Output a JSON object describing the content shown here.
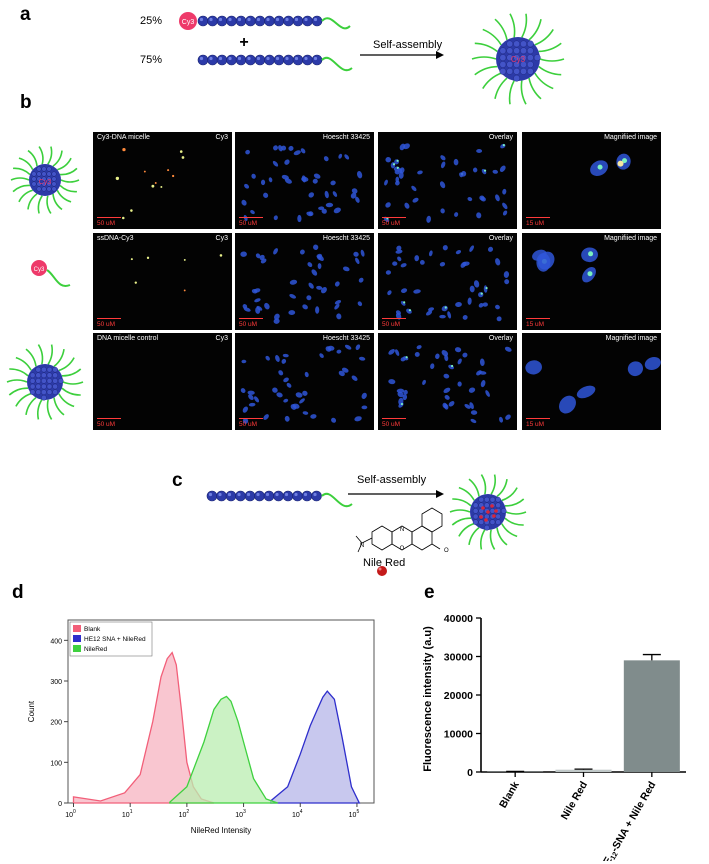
{
  "panels": {
    "a": {
      "letter": "a",
      "cy3_percent": "25%",
      "plain_percent": "75%",
      "plus": "+",
      "cy3_tag": "Cy3",
      "arrow_label": "Self-assembly",
      "micelle_core_tag": "Cy3"
    },
    "b": {
      "letter": "b",
      "rows": [
        {
          "side_tag": "Cy3",
          "scale_label": "50 uM",
          "magnified_scale_label": "15 uM",
          "tiles": [
            {
              "left": "Cy3-DNA micelle",
              "right": "Cy3"
            },
            {
              "left": "",
              "right": "Hoescht 33425"
            },
            {
              "left": "",
              "right": "Overlay"
            },
            {
              "left": "",
              "right": "Magnifiied image"
            }
          ]
        },
        {
          "side_tag": "Cy3",
          "scale_label": "50 uM",
          "magnified_scale_label": "15 uM",
          "tiles": [
            {
              "left": "ssDNA-Cy3",
              "right": "Cy3"
            },
            {
              "left": "",
              "right": "Hoescht 33425"
            },
            {
              "left": "",
              "right": "Overlay"
            },
            {
              "left": "",
              "right": "Magnifiied image"
            }
          ]
        },
        {
          "side_tag": "",
          "scale_label": "50 uM",
          "magnified_scale_label": "15 uM",
          "tiles": [
            {
              "left": "DNA micelle control",
              "right": "Cy3"
            },
            {
              "left": "",
              "right": "Hoescht 33425"
            },
            {
              "left": "",
              "right": "Overlay"
            },
            {
              "left": "",
              "right": "Magnified image"
            }
          ]
        }
      ]
    },
    "c": {
      "letter": "c",
      "arrow_label": "Self-assembly",
      "dye_label": "Nile Red"
    },
    "d": {
      "letter": "d",
      "chart_data": {
        "type": "area",
        "title": "",
        "xlabel": "NileRed Intensity",
        "ylabel": "Count",
        "xscale": "log",
        "xlim": [
          0.8,
          200000
        ],
        "ylim": [
          0,
          450
        ],
        "x_ticks": [
          "10^0",
          "10^1",
          "10^2",
          "10^3",
          "10^4",
          "10^5"
        ],
        "y_ticks": [
          0,
          100,
          200,
          300,
          400
        ],
        "legend_position": "top-left",
        "series": [
          {
            "name": "Blank",
            "color": "#f25f79",
            "fill": "#f7b3c0",
            "x": [
              1,
              3,
              8,
              15,
              25,
              35,
              45,
              55,
              65,
              80,
              100,
              130,
              180,
              300
            ],
            "y": [
              15,
              5,
              25,
              70,
              200,
              310,
              355,
              370,
              340,
              230,
              100,
              40,
              10,
              0
            ]
          },
          {
            "name": "HE12 SNA + NileRed",
            "color": "#2e2ecc",
            "fill": "#b6b6e8",
            "x": [
              3000,
              6000,
              10000,
              15000,
              20000,
              25000,
              30000,
              40000,
              55000,
              80000,
              110000
            ],
            "y": [
              5,
              40,
              120,
              190,
              230,
              260,
              275,
              255,
              160,
              40,
              0
            ]
          },
          {
            "name": "NileRed",
            "color": "#3fd13f",
            "fill": "#b9edb0",
            "x": [
              50,
              100,
              200,
              300,
              400,
              500,
              600,
              800,
              1000,
              1500,
              2500,
              4000
            ],
            "y": [
              2,
              40,
              150,
              230,
              255,
              262,
              250,
              200,
              150,
              60,
              10,
              0
            ]
          }
        ]
      }
    },
    "e": {
      "letter": "e",
      "chart_data": {
        "type": "bar",
        "title": "",
        "xlabel": "",
        "ylabel": "Fluorescence intensity (a.u)",
        "ylim": [
          0,
          40000
        ],
        "y_ticks": [
          0,
          10000,
          20000,
          30000,
          40000
        ],
        "categories": [
          "Blank",
          "Nile Red",
          "HE12-SNA + Nile Red"
        ],
        "category_display": [
          {
            "pre": "Blank",
            "sub": "",
            "post": ""
          },
          {
            "pre": "Nile Red",
            "sub": "",
            "post": ""
          },
          {
            "pre": "HE",
            "sub": "12",
            "post": "-SNA + Nile Red"
          }
        ],
        "values": [
          100,
          600,
          29000
        ],
        "errors": [
          50,
          150,
          1500
        ],
        "bar_color": "#808c8c",
        "bar_colors": [
          "#808c8c",
          "#c0c8c8",
          "#808c8c"
        ]
      }
    }
  }
}
